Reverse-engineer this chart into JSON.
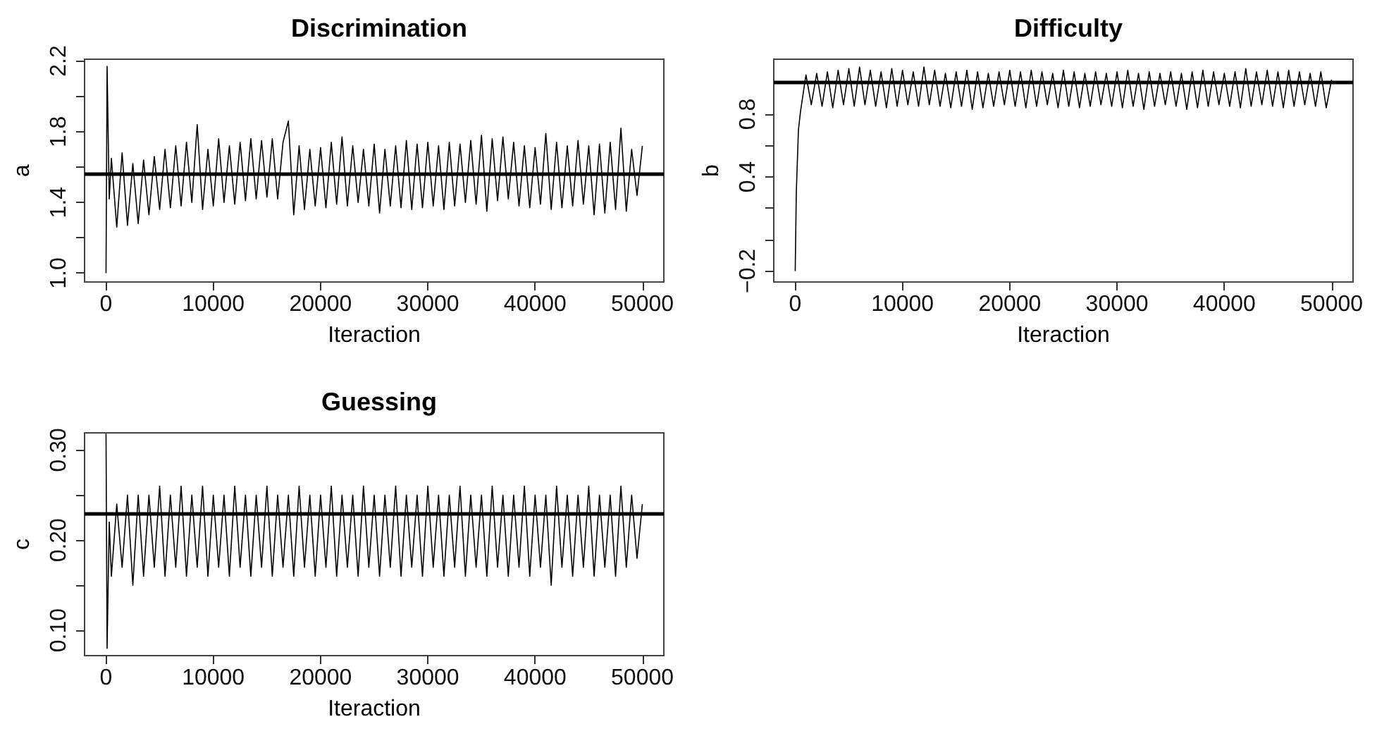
{
  "chart_data": [
    {
      "type": "line",
      "title": "Discrimination",
      "xlabel": "Iteraction",
      "ylabel": "a",
      "xlim": [
        -2000,
        52000
      ],
      "xticks": [
        0,
        10000,
        20000,
        30000,
        40000,
        50000
      ],
      "ylim": [
        0.95,
        2.21
      ],
      "yticks": [
        {
          "value": 1.0,
          "label": "1.0"
        },
        {
          "value": 1.2,
          "label": null
        },
        1.4,
        {
          "value": 1.6,
          "label": null
        },
        1.8,
        {
          "value": 2.0,
          "label": null
        },
        2.2
      ],
      "grid": false,
      "ref_lines": [
        {
          "axis": "y",
          "value": 1.56,
          "color": "#000000"
        }
      ],
      "series": [
        {
          "color": "#000000",
          "x": [
            0,
            100,
            300,
            500,
            1000,
            1500,
            2000,
            2500,
            3000,
            3500,
            4000,
            4500,
            5000,
            5500,
            6000,
            6500,
            7000,
            7500,
            8000,
            8500,
            9000,
            9500,
            10000,
            10500,
            11000,
            11500,
            12000,
            12500,
            13000,
            13500,
            14000,
            14500,
            15000,
            15500,
            16000,
            16500,
            17000,
            17500,
            18000,
            18500,
            19000,
            19500,
            20000,
            20500,
            21000,
            21500,
            22000,
            22500,
            23000,
            23500,
            24000,
            24500,
            25000,
            25500,
            26000,
            26500,
            27000,
            27500,
            28000,
            28500,
            29000,
            29500,
            30000,
            30500,
            31000,
            31500,
            32000,
            32500,
            33000,
            33500,
            34000,
            34500,
            35000,
            35500,
            36000,
            36500,
            37000,
            37500,
            38000,
            38500,
            39000,
            39500,
            40000,
            40500,
            41000,
            41500,
            42000,
            42500,
            43000,
            43500,
            44000,
            44500,
            45000,
            45500,
            46000,
            46500,
            47000,
            47500,
            48000,
            48500,
            49000,
            49500,
            50000
          ],
          "values": [
            1.0,
            2.17,
            1.42,
            1.65,
            1.26,
            1.68,
            1.27,
            1.62,
            1.28,
            1.64,
            1.33,
            1.66,
            1.36,
            1.7,
            1.37,
            1.72,
            1.38,
            1.74,
            1.4,
            1.84,
            1.36,
            1.7,
            1.38,
            1.76,
            1.4,
            1.72,
            1.39,
            1.74,
            1.41,
            1.76,
            1.42,
            1.75,
            1.43,
            1.76,
            1.42,
            1.74,
            1.86,
            1.33,
            1.72,
            1.36,
            1.7,
            1.38,
            1.71,
            1.37,
            1.74,
            1.39,
            1.77,
            1.38,
            1.72,
            1.4,
            1.7,
            1.38,
            1.73,
            1.34,
            1.7,
            1.38,
            1.72,
            1.37,
            1.75,
            1.36,
            1.73,
            1.37,
            1.74,
            1.38,
            1.72,
            1.36,
            1.74,
            1.38,
            1.73,
            1.4,
            1.75,
            1.39,
            1.78,
            1.35,
            1.76,
            1.41,
            1.77,
            1.42,
            1.74,
            1.38,
            1.72,
            1.37,
            1.71,
            1.39,
            1.79,
            1.36,
            1.74,
            1.37,
            1.72,
            1.38,
            1.75,
            1.39,
            1.72,
            1.33,
            1.73,
            1.34,
            1.74,
            1.36,
            1.82,
            1.35,
            1.7,
            1.44,
            1.72
          ]
        }
      ]
    },
    {
      "type": "line",
      "title": "Difficulty",
      "xlabel": "Iteraction",
      "ylabel": "b",
      "xlim": [
        -2000,
        52000
      ],
      "xticks": [
        0,
        10000,
        20000,
        30000,
        40000,
        50000
      ],
      "ylim": [
        -0.27,
        1.15
      ],
      "yticks": [
        {
          "value": -0.2,
          "label": "−0.2"
        },
        {
          "value": 0.0,
          "label": null
        },
        {
          "value": 0.2,
          "label": null
        },
        0.4,
        {
          "value": 0.6,
          "label": null
        },
        0.8
      ],
      "grid": false,
      "ref_lines": [
        {
          "axis": "y",
          "value": 1.0,
          "color": "#000000"
        }
      ],
      "series": [
        {
          "color": "#000000",
          "x": [
            0,
            100,
            300,
            500,
            1000,
            1500,
            2000,
            2500,
            3000,
            3500,
            4000,
            4500,
            5000,
            5500,
            6000,
            6500,
            7000,
            7500,
            8000,
            8500,
            9000,
            9500,
            10000,
            10500,
            11000,
            11500,
            12000,
            12500,
            13000,
            13500,
            14000,
            14500,
            15000,
            15500,
            16000,
            16500,
            17000,
            17500,
            18000,
            18500,
            19000,
            19500,
            20000,
            20500,
            21000,
            21500,
            22000,
            22500,
            23000,
            23500,
            24000,
            24500,
            25000,
            25500,
            26000,
            26500,
            27000,
            27500,
            28000,
            28500,
            29000,
            29500,
            30000,
            30500,
            31000,
            31500,
            32000,
            32500,
            33000,
            33500,
            34000,
            34500,
            35000,
            35500,
            36000,
            36500,
            37000,
            37500,
            38000,
            38500,
            39000,
            39500,
            40000,
            40500,
            41000,
            41500,
            42000,
            42500,
            43000,
            43500,
            44000,
            44500,
            45000,
            45500,
            46000,
            46500,
            47000,
            47500,
            48000,
            48500,
            49000,
            49500,
            50000
          ],
          "values": [
            -0.2,
            0.3,
            0.7,
            0.82,
            1.05,
            0.86,
            1.06,
            0.85,
            1.07,
            0.84,
            1.08,
            0.86,
            1.09,
            0.85,
            1.1,
            0.86,
            1.08,
            0.85,
            1.07,
            0.84,
            1.09,
            0.85,
            1.08,
            0.86,
            1.07,
            0.85,
            1.1,
            0.86,
            1.08,
            0.85,
            1.06,
            0.84,
            1.07,
            0.85,
            1.08,
            0.83,
            1.07,
            0.84,
            1.06,
            0.85,
            1.07,
            0.86,
            1.08,
            0.85,
            1.07,
            0.84,
            1.08,
            0.85,
            1.07,
            0.86,
            1.06,
            0.84,
            1.08,
            0.85,
            1.07,
            0.84,
            1.06,
            0.85,
            1.07,
            0.86,
            1.06,
            0.85,
            1.07,
            0.84,
            1.08,
            0.85,
            1.06,
            0.83,
            1.07,
            0.85,
            1.06,
            0.86,
            1.07,
            0.85,
            1.06,
            0.83,
            1.07,
            0.84,
            1.08,
            0.85,
            1.07,
            0.86,
            1.06,
            0.85,
            1.07,
            0.84,
            1.09,
            0.85,
            1.07,
            0.86,
            1.08,
            0.85,
            1.07,
            0.84,
            1.08,
            0.85,
            1.07,
            0.86,
            1.06,
            0.85,
            1.07,
            0.84,
            1.02
          ]
        }
      ]
    },
    {
      "type": "line",
      "title": "Guessing",
      "xlabel": "Iteraction",
      "ylabel": "c",
      "xlim": [
        -2000,
        52000
      ],
      "xticks": [
        0,
        10000,
        20000,
        30000,
        40000,
        50000
      ],
      "ylim": [
        0.072,
        0.319
      ],
      "yticks": [
        {
          "value": 0.1,
          "label": "0.10"
        },
        {
          "value": 0.15,
          "label": null
        },
        {
          "value": 0.2,
          "label": "0.20"
        },
        {
          "value": 0.25,
          "label": null
        },
        {
          "value": 0.3,
          "label": "0.30"
        }
      ],
      "grid": false,
      "ref_lines": [
        {
          "axis": "y",
          "value": 0.23,
          "color": "#000000"
        }
      ],
      "series": [
        {
          "color": "#000000",
          "x": [
            0,
            100,
            300,
            500,
            1000,
            1500,
            2000,
            2500,
            3000,
            3500,
            4000,
            4500,
            5000,
            5500,
            6000,
            6500,
            7000,
            7500,
            8000,
            8500,
            9000,
            9500,
            10000,
            10500,
            11000,
            11500,
            12000,
            12500,
            13000,
            13500,
            14000,
            14500,
            15000,
            15500,
            16000,
            16500,
            17000,
            17500,
            18000,
            18500,
            19000,
            19500,
            20000,
            20500,
            21000,
            21500,
            22000,
            22500,
            23000,
            23500,
            24000,
            24500,
            25000,
            25500,
            26000,
            26500,
            27000,
            27500,
            28000,
            28500,
            29000,
            29500,
            30000,
            30500,
            31000,
            31500,
            32000,
            32500,
            33000,
            33500,
            34000,
            34500,
            35000,
            35500,
            36000,
            36500,
            37000,
            37500,
            38000,
            38500,
            39000,
            39500,
            40000,
            40500,
            41000,
            41500,
            42000,
            42500,
            43000,
            43500,
            44000,
            44500,
            45000,
            45500,
            46000,
            46500,
            47000,
            47500,
            48000,
            48500,
            49000,
            49500,
            50000
          ],
          "values": [
            0.318,
            0.08,
            0.22,
            0.16,
            0.24,
            0.17,
            0.25,
            0.15,
            0.25,
            0.16,
            0.25,
            0.17,
            0.26,
            0.16,
            0.25,
            0.17,
            0.26,
            0.16,
            0.25,
            0.17,
            0.26,
            0.16,
            0.25,
            0.17,
            0.25,
            0.16,
            0.26,
            0.17,
            0.25,
            0.16,
            0.25,
            0.17,
            0.26,
            0.16,
            0.25,
            0.17,
            0.25,
            0.16,
            0.26,
            0.17,
            0.25,
            0.16,
            0.25,
            0.17,
            0.26,
            0.16,
            0.25,
            0.17,
            0.25,
            0.16,
            0.26,
            0.17,
            0.25,
            0.16,
            0.25,
            0.17,
            0.26,
            0.16,
            0.25,
            0.17,
            0.25,
            0.16,
            0.26,
            0.17,
            0.25,
            0.16,
            0.25,
            0.17,
            0.26,
            0.16,
            0.25,
            0.17,
            0.25,
            0.16,
            0.26,
            0.17,
            0.25,
            0.16,
            0.25,
            0.17,
            0.26,
            0.16,
            0.25,
            0.17,
            0.25,
            0.15,
            0.26,
            0.17,
            0.25,
            0.16,
            0.25,
            0.17,
            0.26,
            0.16,
            0.25,
            0.17,
            0.25,
            0.16,
            0.26,
            0.17,
            0.25,
            0.18,
            0.24
          ]
        }
      ]
    }
  ]
}
